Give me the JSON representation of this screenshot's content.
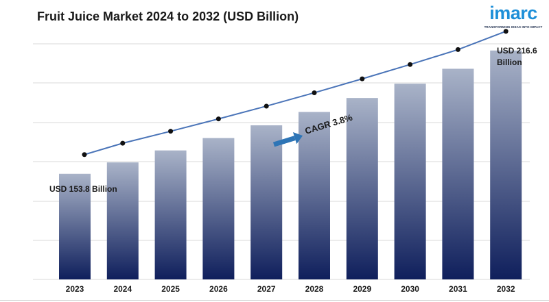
{
  "title": "Fruit Juice Market 2024 to 2032 (USD Billion)",
  "logo": {
    "wordmark": "imarc",
    "tagline": "TRANSFORMING IDEAS INTO IMPACT"
  },
  "colors": {
    "bar_top": "#a9b3c8",
    "bar_bottom": "#0f1f5c",
    "line": "#4a74b8",
    "marker": "#111111",
    "arrow": "#2e75b6",
    "grid": "#d9d9d9"
  },
  "chart_data": {
    "type": "bar",
    "title": "Fruit Juice Market 2024 to 2032 (USD Billion)",
    "categories": [
      "2023",
      "2024",
      "2025",
      "2026",
      "2027",
      "2028",
      "2029",
      "2030",
      "2031",
      "2032"
    ],
    "series": [
      {
        "values": [
          153.8,
          159.6,
          165.7,
          172.0,
          178.5,
          185.3,
          192.4,
          199.7,
          207.3,
          216.6
        ]
      }
    ],
    "trend_line": {
      "values": [
        153.8,
        159.6,
        165.7,
        172.0,
        178.5,
        185.3,
        192.4,
        199.7,
        207.3,
        216.6
      ]
    },
    "ylim": [
      100,
      220
    ],
    "grid": true,
    "legend": "none",
    "annotations": {
      "start_label": "USD 153.8 Billion",
      "end_label_line1": "USD 216.6",
      "end_label_line2": "Billion",
      "cagr": "CAGR 3.8%"
    }
  }
}
